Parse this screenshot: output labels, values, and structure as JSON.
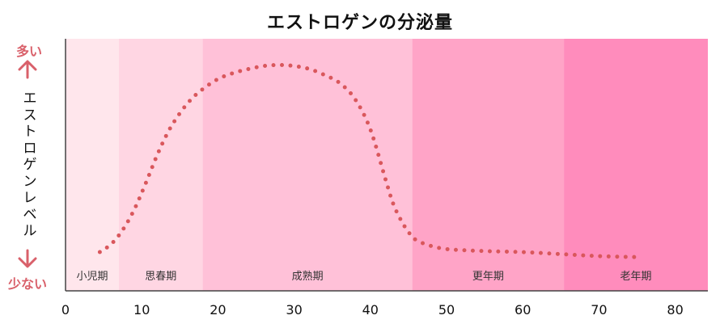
{
  "chart_data": {
    "type": "line",
    "title": "エストロゲンの分泌量",
    "xlabel": "",
    "ylabel": "エストロゲンレベル",
    "y_high_label": "多い",
    "y_low_label": "少ない",
    "xlim": [
      0,
      84
    ],
    "ylim": [
      0,
      100
    ],
    "xticks": [
      0,
      10,
      20,
      30,
      40,
      50,
      60,
      70,
      80
    ],
    "grid": false,
    "line_style": "dotted",
    "line_color": "#d9575c",
    "bands": [
      {
        "label": "小児期",
        "start": 0,
        "end": 7,
        "color": "#ffe6ec"
      },
      {
        "label": "思春期",
        "start": 7,
        "end": 18,
        "color": "#ffd6e3"
      },
      {
        "label": "成熟期",
        "start": 18,
        "end": 45.5,
        "color": "#ffc1d8"
      },
      {
        "label": "更年期",
        "start": 45.5,
        "end": 65.4,
        "color": "#ffa4c7"
      },
      {
        "label": "老年期",
        "start": 65.4,
        "end": 84.3,
        "color": "#ff8cbc"
      }
    ],
    "series": [
      {
        "name": "エストロゲン",
        "x": [
          4.5,
          6,
          7.5,
          9,
          10.5,
          12,
          13.5,
          15,
          16.5,
          18,
          20,
          22,
          24,
          26,
          28,
          30,
          32,
          34,
          36,
          38,
          40,
          42,
          43,
          44,
          45,
          46,
          48,
          50,
          52,
          55,
          60,
          65,
          70,
          75
        ],
        "values": [
          4,
          8,
          15,
          25,
          38,
          52,
          64,
          73,
          80,
          85,
          90,
          93,
          95,
          96.5,
          97,
          96.5,
          95,
          92,
          88,
          80,
          65,
          40,
          28,
          20,
          14,
          10,
          7,
          5.5,
          5,
          4.5,
          4,
          3,
          2,
          1.5
        ]
      }
    ]
  }
}
